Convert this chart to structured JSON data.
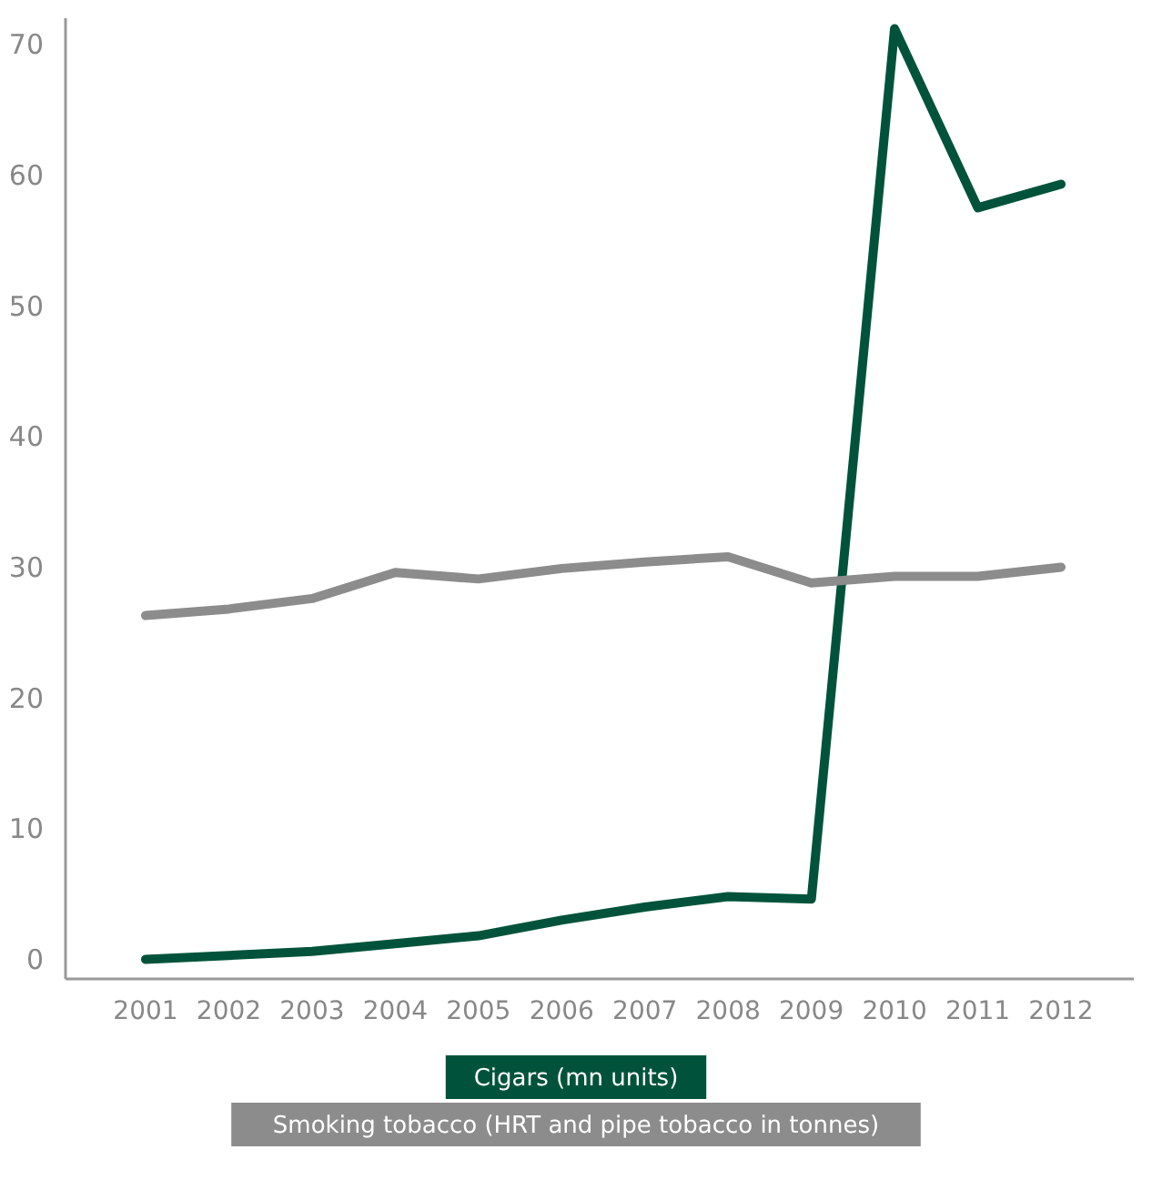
{
  "chart_data": {
    "type": "line",
    "categories": [
      "2001",
      "2002",
      "2003",
      "2004",
      "2005",
      "2006",
      "2007",
      "2008",
      "2009",
      "2010",
      "2011",
      "2012"
    ],
    "series": [
      {
        "name": "Cigars (mn units)",
        "color": "#00533a",
        "values": [
          0.0,
          0.3,
          0.6,
          1.2,
          1.8,
          3.0,
          4.0,
          4.8,
          4.6,
          71.2,
          57.5,
          59.3
        ]
      },
      {
        "name": "Smoking tobacco (HRT and pipe tobacco in tonnes)",
        "color": "#8c8c8c",
        "values": [
          26.3,
          26.8,
          27.6,
          29.6,
          29.1,
          29.9,
          30.4,
          30.8,
          28.8,
          29.3,
          29.3,
          30.0
        ]
      }
    ],
    "ylim": [
      -1.5,
      72
    ],
    "yticks": [
      0,
      10,
      20,
      30,
      40,
      50,
      60,
      70
    ],
    "grid": false,
    "legend": "bottom",
    "marker": "none",
    "line_style": "solid"
  }
}
